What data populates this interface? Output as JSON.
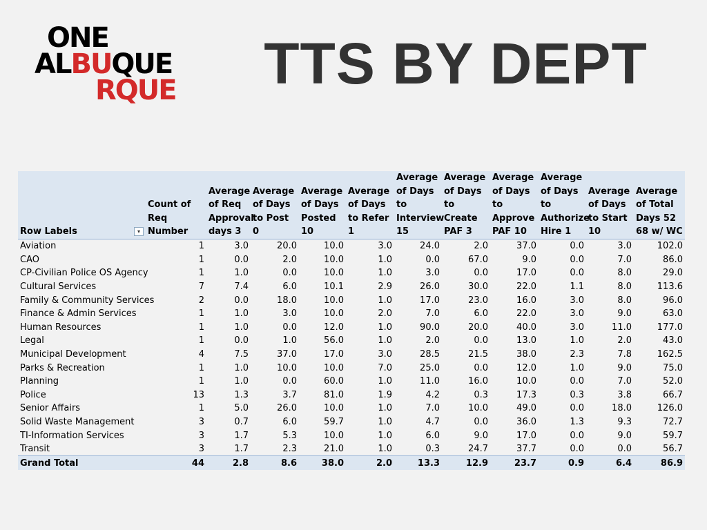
{
  "logo": {
    "line1": "ONE",
    "line2_a": "AL",
    "line2_b": "BU",
    "line2_c": "QUE",
    "line3": "RQUE"
  },
  "title": "TTS BY DEPT",
  "table": {
    "headers": [
      "Row Labels",
      "Count of Req Number",
      "Average of Req Approval days 3",
      "Average of Days to Post 0",
      "Average of Days Posted 10",
      "Average of Days to Refer 1",
      "Average of Days to Interview 15",
      "Average of Days to Create PAF 3",
      "Average of Days to Approve PAF 10",
      "Average of Days to Authorize Hire 1",
      "Average of Days to Start 10",
      "Average of Total Days 52 68 w/ WC"
    ],
    "rows": [
      [
        "Aviation",
        "1",
        "3.0",
        "20.0",
        "10.0",
        "3.0",
        "24.0",
        "2.0",
        "37.0",
        "0.0",
        "3.0",
        "102.0"
      ],
      [
        "CAO",
        "1",
        "0.0",
        "2.0",
        "10.0",
        "1.0",
        "0.0",
        "67.0",
        "9.0",
        "0.0",
        "7.0",
        "86.0"
      ],
      [
        "CP-Civilian Police OS Agency",
        "1",
        "1.0",
        "0.0",
        "10.0",
        "1.0",
        "3.0",
        "0.0",
        "17.0",
        "0.0",
        "8.0",
        "29.0"
      ],
      [
        "Cultural Services",
        "7",
        "7.4",
        "6.0",
        "10.1",
        "2.9",
        "26.0",
        "30.0",
        "22.0",
        "1.1",
        "8.0",
        "113.6"
      ],
      [
        "Family & Community Services",
        "2",
        "0.0",
        "18.0",
        "10.0",
        "1.0",
        "17.0",
        "23.0",
        "16.0",
        "3.0",
        "8.0",
        "96.0"
      ],
      [
        "Finance & Admin Services",
        "1",
        "1.0",
        "3.0",
        "10.0",
        "2.0",
        "7.0",
        "6.0",
        "22.0",
        "3.0",
        "9.0",
        "63.0"
      ],
      [
        "Human Resources",
        "1",
        "1.0",
        "0.0",
        "12.0",
        "1.0",
        "90.0",
        "20.0",
        "40.0",
        "3.0",
        "11.0",
        "177.0"
      ],
      [
        "Legal",
        "1",
        "0.0",
        "1.0",
        "56.0",
        "1.0",
        "2.0",
        "0.0",
        "13.0",
        "1.0",
        "2.0",
        "43.0"
      ],
      [
        "Municipal Development",
        "4",
        "7.5",
        "37.0",
        "17.0",
        "3.0",
        "28.5",
        "21.5",
        "38.0",
        "2.3",
        "7.8",
        "162.5"
      ],
      [
        "Parks & Recreation",
        "1",
        "1.0",
        "10.0",
        "10.0",
        "7.0",
        "25.0",
        "0.0",
        "12.0",
        "1.0",
        "9.0",
        "75.0"
      ],
      [
        "Planning",
        "1",
        "1.0",
        "0.0",
        "60.0",
        "1.0",
        "11.0",
        "16.0",
        "10.0",
        "0.0",
        "7.0",
        "52.0"
      ],
      [
        "Police",
        "13",
        "1.3",
        "3.7",
        "81.0",
        "1.9",
        "4.2",
        "0.3",
        "17.3",
        "0.3",
        "3.8",
        "66.7"
      ],
      [
        "Senior Affairs",
        "1",
        "5.0",
        "26.0",
        "10.0",
        "1.0",
        "7.0",
        "10.0",
        "49.0",
        "0.0",
        "18.0",
        "126.0"
      ],
      [
        "Solid Waste Management",
        "3",
        "0.7",
        "6.0",
        "59.7",
        "1.0",
        "4.7",
        "0.0",
        "36.0",
        "1.3",
        "9.3",
        "72.7"
      ],
      [
        "TI-Information Services",
        "3",
        "1.7",
        "5.3",
        "10.0",
        "1.0",
        "6.0",
        "9.0",
        "17.0",
        "0.0",
        "9.0",
        "59.7"
      ],
      [
        "Transit",
        "3",
        "1.7",
        "2.3",
        "21.0",
        "1.0",
        "0.3",
        "24.7",
        "37.7",
        "0.0",
        "0.0",
        "56.7"
      ]
    ],
    "total": [
      "Grand Total",
      "44",
      "2.8",
      "8.6",
      "38.0",
      "2.0",
      "13.3",
      "12.9",
      "23.7",
      "0.9",
      "6.4",
      "86.9"
    ],
    "filter_icon": "filter-dropdown-icon"
  }
}
